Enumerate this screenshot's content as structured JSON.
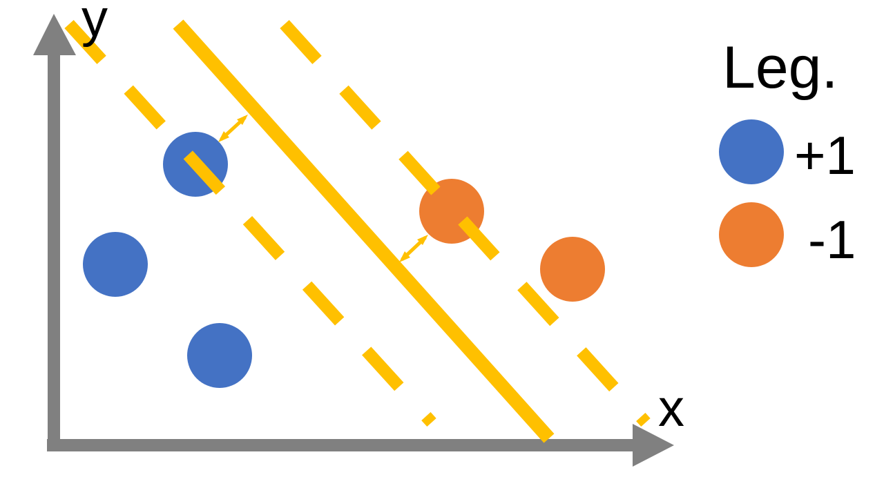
{
  "axes": {
    "x_label": "x",
    "y_label": "y"
  },
  "legend": {
    "title": "Leg.",
    "items": [
      {
        "label": "+1",
        "class": "positive"
      },
      {
        "label": "-1",
        "class": "negative"
      }
    ]
  },
  "classes": {
    "positive": {
      "label": "+1",
      "point_count": 3
    },
    "negative": {
      "label": "-1",
      "point_count": 2
    }
  },
  "lines": {
    "decision_boundary": "solid",
    "margins": "dashed"
  },
  "colors": {
    "axis": "#808080",
    "positive": "#4472C4",
    "negative": "#ED7D31",
    "boundary": "#FFC000",
    "text": "#000000",
    "background": "#FFFFFF"
  }
}
